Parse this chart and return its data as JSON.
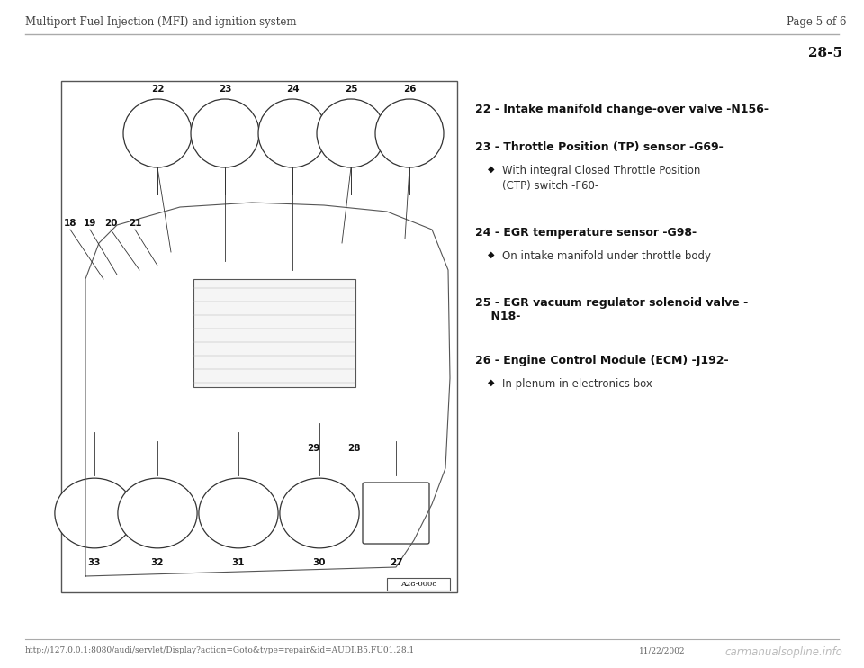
{
  "page_header_left": "Multiport Fuel Injection (MFI) and ignition system",
  "page_header_right": "Page 5 of 6",
  "page_number": "28-5",
  "bg_color": "#ffffff",
  "header_line_color": "#999999",
  "footer_url": "http://127.0.0.1:8080/audi/servlet/Display?action=Goto&type=repair&id=AUDI.B5.FU01.28.1",
  "footer_date": "11/22/2002",
  "footer_watermark": "carmanualsopline.info",
  "diagram_label": "A28-0008",
  "circle_labels_top": [
    "22",
    "23",
    "24",
    "25",
    "26"
  ],
  "circle_labels_bottom": [
    "33",
    "32",
    "31",
    "30",
    "27"
  ],
  "labels_left": [
    "18",
    "19",
    "20",
    "21"
  ],
  "labels_bottom_mid": [
    "29",
    "28"
  ],
  "items": [
    {
      "number": "22",
      "bold_text": "Intake manifold change-over valve -N156-",
      "sub_items": []
    },
    {
      "number": "23",
      "bold_text": "Throttle Position (TP) sensor -G69-",
      "sub_items": [
        "With integral Closed Throttle Position\n    (CTP) switch -F60-"
      ]
    },
    {
      "number": "24",
      "bold_text": "EGR temperature sensor -G98-",
      "sub_items": [
        "On intake manifold under throttle body"
      ]
    },
    {
      "number": "25",
      "bold_text": "EGR vacuum regulator solenoid valve -\n    N18-",
      "sub_items": []
    },
    {
      "number": "26",
      "bold_text": "Engine Control Module (ECM) -J192-",
      "sub_items": [
        "In plenum in electronics box"
      ]
    }
  ]
}
